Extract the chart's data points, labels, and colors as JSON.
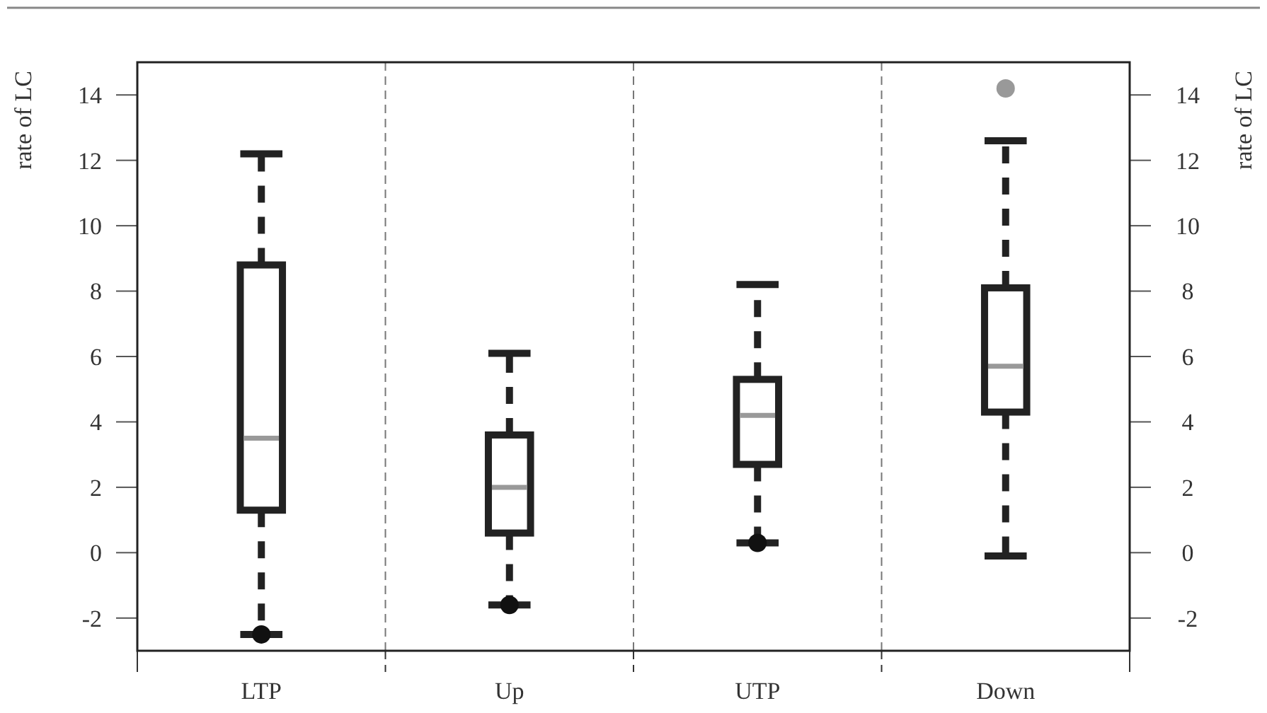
{
  "chart_data": {
    "type": "box",
    "ylabel": "rate of LC",
    "y2label": "rate of LC",
    "categories": [
      "LTP",
      "Up",
      "UTP",
      "Down"
    ],
    "series": [
      {
        "color": "#222222",
        "boxes": [
          {
            "low": -2.5,
            "q1": 1.3,
            "median": 3.5,
            "q3": 8.8,
            "high": 12.2
          },
          {
            "low": -1.6,
            "q1": 0.6,
            "median": 2.0,
            "q3": 3.6,
            "high": 6.1
          },
          {
            "low": 0.3,
            "q1": 2.7,
            "median": 4.2,
            "q3": 5.3,
            "high": 8.2
          },
          {
            "low": -0.1,
            "q1": 4.3,
            "median": 5.7,
            "q3": 8.1,
            "high": 12.6,
            "outliers": [
              14.2
            ]
          }
        ]
      },
      {
        "type": "scatter",
        "color": "#111111",
        "x": [
          "LTP",
          "Up",
          "UTP"
        ],
        "values": [
          -2.5,
          -1.6,
          0.3
        ]
      }
    ],
    "ylim": [
      -3,
      15
    ],
    "yticks": [
      -2,
      0,
      2,
      4,
      6,
      8,
      10,
      12,
      14
    ],
    "y2lim": [
      -3,
      15
    ],
    "y2ticks": [
      -2,
      0,
      2,
      4,
      6,
      8,
      10,
      12,
      14
    ],
    "grid": "x",
    "marker": "circle"
  }
}
